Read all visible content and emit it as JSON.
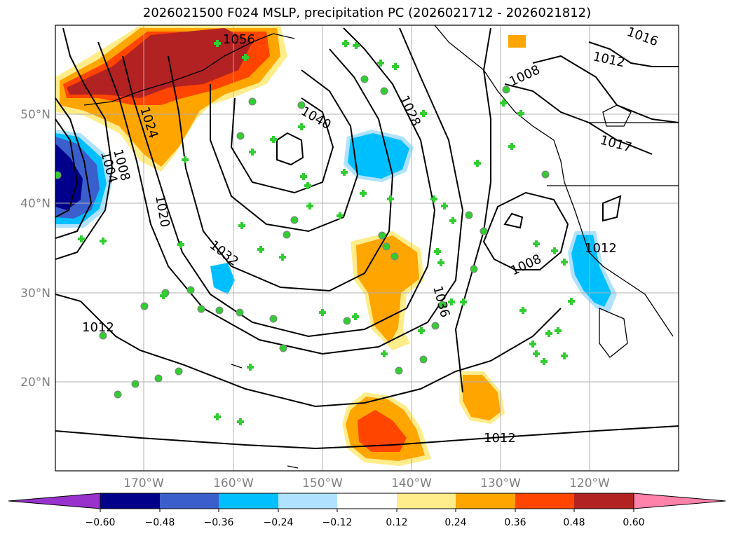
{
  "title": "2026021500 F024 MSLP, precipitation PC (2026021712 - 2026021812)",
  "lat_labels": [
    "50°N",
    "40°N",
    "30°N",
    "20°N"
  ],
  "lon_labels": [
    "170°W",
    "160°W",
    "150°W",
    "140°W",
    "130°W",
    "120°W"
  ],
  "isobar_labels": [
    "1056",
    "1016",
    "1012",
    "1008",
    "1040",
    "1028",
    "1024",
    "1017",
    "1008",
    "1004",
    "1020",
    "1032",
    "1036",
    "1012",
    "1008",
    "1012",
    "1012"
  ],
  "colorbar": {
    "ticks": [
      "−0.60",
      "−0.48",
      "−0.36",
      "−0.24",
      "−0.12",
      "0.12",
      "0.24",
      "0.36",
      "0.48",
      "0.60"
    ],
    "colors": [
      "#9932cc",
      "#00008b",
      "#3a5fcd",
      "#00bfff",
      "#b0e2ff",
      "#ffffff",
      "#ffec8b",
      "#ffa500",
      "#ff4500",
      "#b22222",
      "#ff82ab"
    ]
  },
  "colors": {
    "station_marker": "#32cd32",
    "coastline": "#000000",
    "grid": "#b0b0b0"
  }
}
